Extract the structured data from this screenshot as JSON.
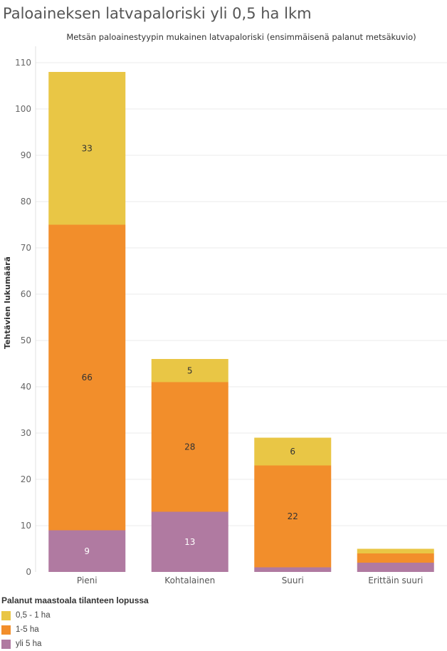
{
  "page_title": "Paloaineksen latvapaloriski yli 0,5 ha lkm",
  "chart_data": {
    "type": "bar",
    "stacked": true,
    "title": "Metsän paloainestyypin mukainen latvapaloriski (ensimmäisenä palanut metsäkuvio)",
    "xlabel": "",
    "ylabel": "Tehtävien lukumäärä",
    "ylim": [
      0,
      112
    ],
    "yticks": [
      0,
      10,
      20,
      30,
      40,
      50,
      60,
      70,
      80,
      90,
      100,
      110
    ],
    "grid": true,
    "categories": [
      "Pieni",
      "Kohtalainen",
      "Suuri",
      "Erittäin suuri"
    ],
    "series": [
      {
        "name": "yli 5 ha",
        "color": "#b07aa1",
        "values": [
          9,
          13,
          1,
          2
        ],
        "labels": [
          "9",
          "13",
          "",
          ""
        ]
      },
      {
        "name": "1-5 ha",
        "color": "#f28e2b",
        "values": [
          66,
          28,
          22,
          2
        ],
        "labels": [
          "66",
          "28",
          "22",
          ""
        ]
      },
      {
        "name": "0,5 - 1 ha",
        "color": "#e9c645",
        "values": [
          33,
          5,
          6,
          1
        ],
        "labels": [
          "33",
          "5",
          "6",
          ""
        ]
      }
    ]
  },
  "legend": {
    "title": "Palanut maastoala tilanteen lopussa",
    "items": [
      {
        "label": "0,5 - 1 ha",
        "color": "#e9c645"
      },
      {
        "label": "1-5 ha",
        "color": "#f28e2b"
      },
      {
        "label": "yli 5 ha",
        "color": "#b07aa1"
      }
    ]
  }
}
